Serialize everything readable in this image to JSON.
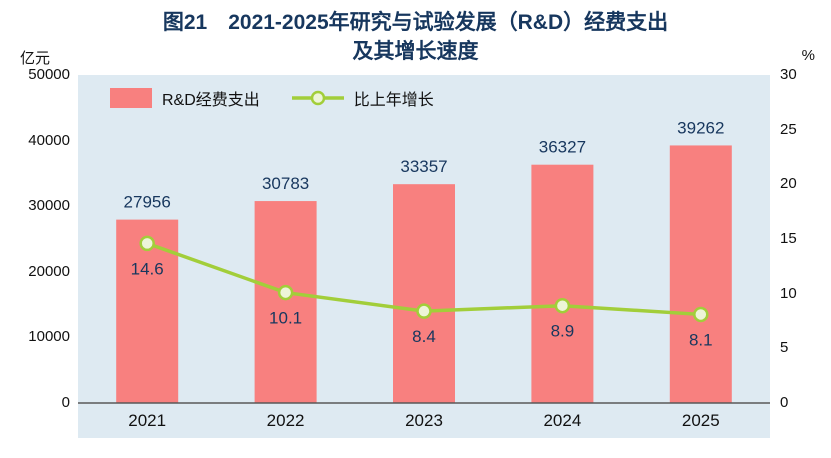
{
  "title": {
    "line1": "图21　2021-2025年研究与试验发展（R&D）经费支出",
    "line2": "及其增长速度"
  },
  "axes": {
    "left_unit": "亿元",
    "right_unit": "%"
  },
  "legend": {
    "bar_label": "R&D经费支出",
    "line_label": "比上年增长"
  },
  "colors": {
    "bar": "#F8807F",
    "line": "#A2CE3A",
    "marker_fill": "#EDF5D8",
    "plot_bg": "#DEEAF2",
    "title_text": "#17375E",
    "label_text": "#17375E",
    "axis_text": "#111111",
    "axis_line": "#595959"
  },
  "chart_data": {
    "type": "bar",
    "subtype": "bar+line combo",
    "categories": [
      "2021",
      "2022",
      "2023",
      "2024",
      "2025"
    ],
    "series": [
      {
        "name": "R&D经费支出",
        "type": "bar",
        "axis": "left",
        "values": [
          27956,
          30783,
          33357,
          36327,
          39262
        ]
      },
      {
        "name": "比上年增长",
        "type": "line",
        "axis": "right",
        "values": [
          14.6,
          10.1,
          8.4,
          8.9,
          8.1
        ]
      }
    ],
    "title": "图21 2021-2025年研究与试验发展（R&D）经费支出及其增长速度",
    "xlabel": "",
    "ylabel_left": "亿元",
    "ylabel_right": "%",
    "left_axis": {
      "min": 0,
      "max": 50000,
      "ticks": [
        0,
        10000,
        20000,
        30000,
        40000,
        50000
      ]
    },
    "right_axis": {
      "min": 0,
      "max": 30,
      "ticks": [
        0,
        5,
        10,
        15,
        20,
        25,
        30
      ]
    },
    "grid": false,
    "legend_position": "top-left-inside"
  }
}
